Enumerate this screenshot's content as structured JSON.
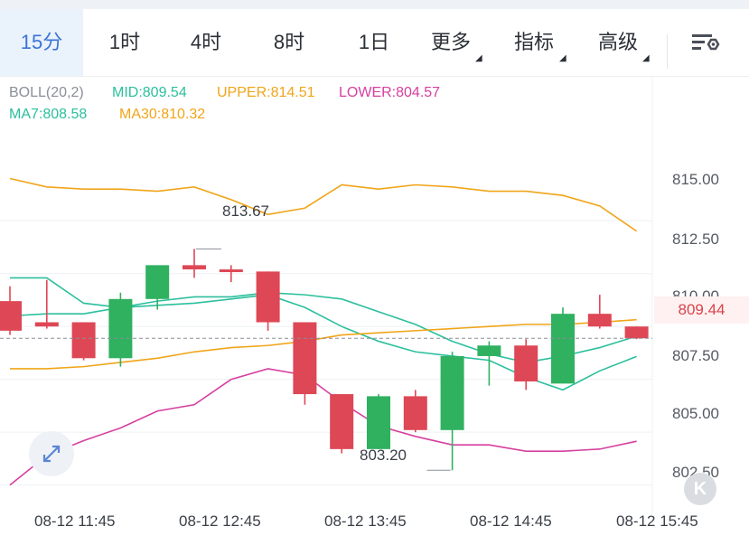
{
  "tabs": [
    {
      "label": "15分",
      "active": true
    },
    {
      "label": "1时",
      "active": false
    },
    {
      "label": "4时",
      "active": false
    },
    {
      "label": "8时",
      "active": false
    },
    {
      "label": "1日",
      "active": false
    },
    {
      "label": "更多",
      "active": false,
      "dropdown": true
    },
    {
      "label": "指标",
      "active": false,
      "dropdown": true
    },
    {
      "label": "高级",
      "active": false,
      "dropdown": true
    }
  ],
  "settings_icon": "chart-settings-icon",
  "indicators": {
    "boll_name": "BOLL(20,2)",
    "mid": "MID:809.54",
    "upper": "UPPER:814.51",
    "lower": "LOWER:804.57",
    "ma7": "MA7:808.58",
    "ma30": "MA30:810.32"
  },
  "colors": {
    "up": "#2fb160",
    "down": "#de4755",
    "mid_line": "#2bbf9d",
    "upper_line": "#f0a519",
    "lower_line": "#d6409f",
    "accent": "#3a74d8"
  },
  "current_price": "809.44",
  "chart_data": {
    "type": "candlestick",
    "interval": "15分",
    "ylim": [
      801.5,
      819.8
    ],
    "y_ticks": [
      "815.00",
      "812.50",
      "810.00",
      "807.50",
      "805.00",
      "802.50"
    ],
    "x_ticks": [
      "08-12 11:45",
      "08-12 12:45",
      "08-12 13:45",
      "08-12 14:45",
      "08-12 15:45"
    ],
    "high_label": "813.67",
    "low_label": "803.20",
    "current_price": 809.44,
    "candles": [
      {
        "o": 811.2,
        "c": 809.8,
        "h": 811.9,
        "l": 809.6
      },
      {
        "o": 810.2,
        "c": 810.0,
        "h": 812.2,
        "l": 809.9
      },
      {
        "o": 810.2,
        "c": 808.5,
        "h": 810.2,
        "l": 808.4
      },
      {
        "o": 808.5,
        "c": 811.3,
        "h": 811.6,
        "l": 808.1
      },
      {
        "o": 811.3,
        "c": 812.9,
        "h": 812.9,
        "l": 810.8
      },
      {
        "o": 812.9,
        "c": 812.7,
        "h": 813.67,
        "l": 812.3
      },
      {
        "o": 812.7,
        "c": 812.6,
        "h": 812.9,
        "l": 812.1
      },
      {
        "o": 812.6,
        "c": 810.2,
        "h": 812.6,
        "l": 809.8
      },
      {
        "o": 810.2,
        "c": 806.8,
        "h": 810.2,
        "l": 806.3
      },
      {
        "o": 806.8,
        "c": 804.2,
        "h": 806.8,
        "l": 804.0
      },
      {
        "o": 804.2,
        "c": 806.7,
        "h": 806.8,
        "l": 804.2
      },
      {
        "o": 806.7,
        "c": 805.1,
        "h": 807.0,
        "l": 805.0
      },
      {
        "o": 805.1,
        "c": 808.6,
        "h": 808.8,
        "l": 803.2
      },
      {
        "o": 808.6,
        "c": 809.1,
        "h": 809.3,
        "l": 807.2
      },
      {
        "o": 809.1,
        "c": 807.4,
        "h": 809.4,
        "l": 807.0
      },
      {
        "o": 807.3,
        "c": 810.6,
        "h": 810.9,
        "l": 807.3
      },
      {
        "o": 810.6,
        "c": 810.0,
        "h": 811.5,
        "l": 809.9
      },
      {
        "o": 810.0,
        "c": 809.44,
        "h": 810.0,
        "l": 809.4
      }
    ],
    "series": [
      {
        "name": "UPPER",
        "values": [
          817.0,
          816.6,
          816.5,
          816.5,
          816.4,
          816.6,
          816.0,
          815.3,
          815.6,
          816.7,
          816.5,
          816.7,
          816.6,
          816.4,
          816.4,
          816.2,
          815.7,
          814.51
        ]
      },
      {
        "name": "MID",
        "values": [
          810.5,
          810.6,
          810.6,
          810.9,
          811.2,
          811.4,
          811.4,
          811.6,
          811.5,
          811.3,
          810.7,
          810.1,
          809.3,
          808.7,
          808.3,
          808.6,
          809.0,
          809.54
        ]
      },
      {
        "name": "LOWER",
        "values": [
          802.5,
          803.9,
          804.6,
          805.2,
          806.0,
          806.3,
          807.5,
          808.0,
          807.7,
          806.4,
          805.3,
          804.8,
          804.4,
          804.4,
          804.1,
          804.1,
          804.2,
          804.57
        ]
      },
      {
        "name": "MA7",
        "values": [
          812.3,
          812.3,
          811.1,
          810.9,
          811.0,
          811.1,
          811.3,
          811.5,
          810.9,
          810.0,
          809.3,
          808.8,
          808.6,
          808.4,
          807.6,
          807.0,
          807.9,
          808.58
        ]
      },
      {
        "name": "MA30",
        "values": [
          808.0,
          808.0,
          808.1,
          808.3,
          808.5,
          808.8,
          809.0,
          809.1,
          809.3,
          809.6,
          809.7,
          809.8,
          809.9,
          810.0,
          810.1,
          810.1,
          810.2,
          810.32
        ]
      }
    ]
  }
}
